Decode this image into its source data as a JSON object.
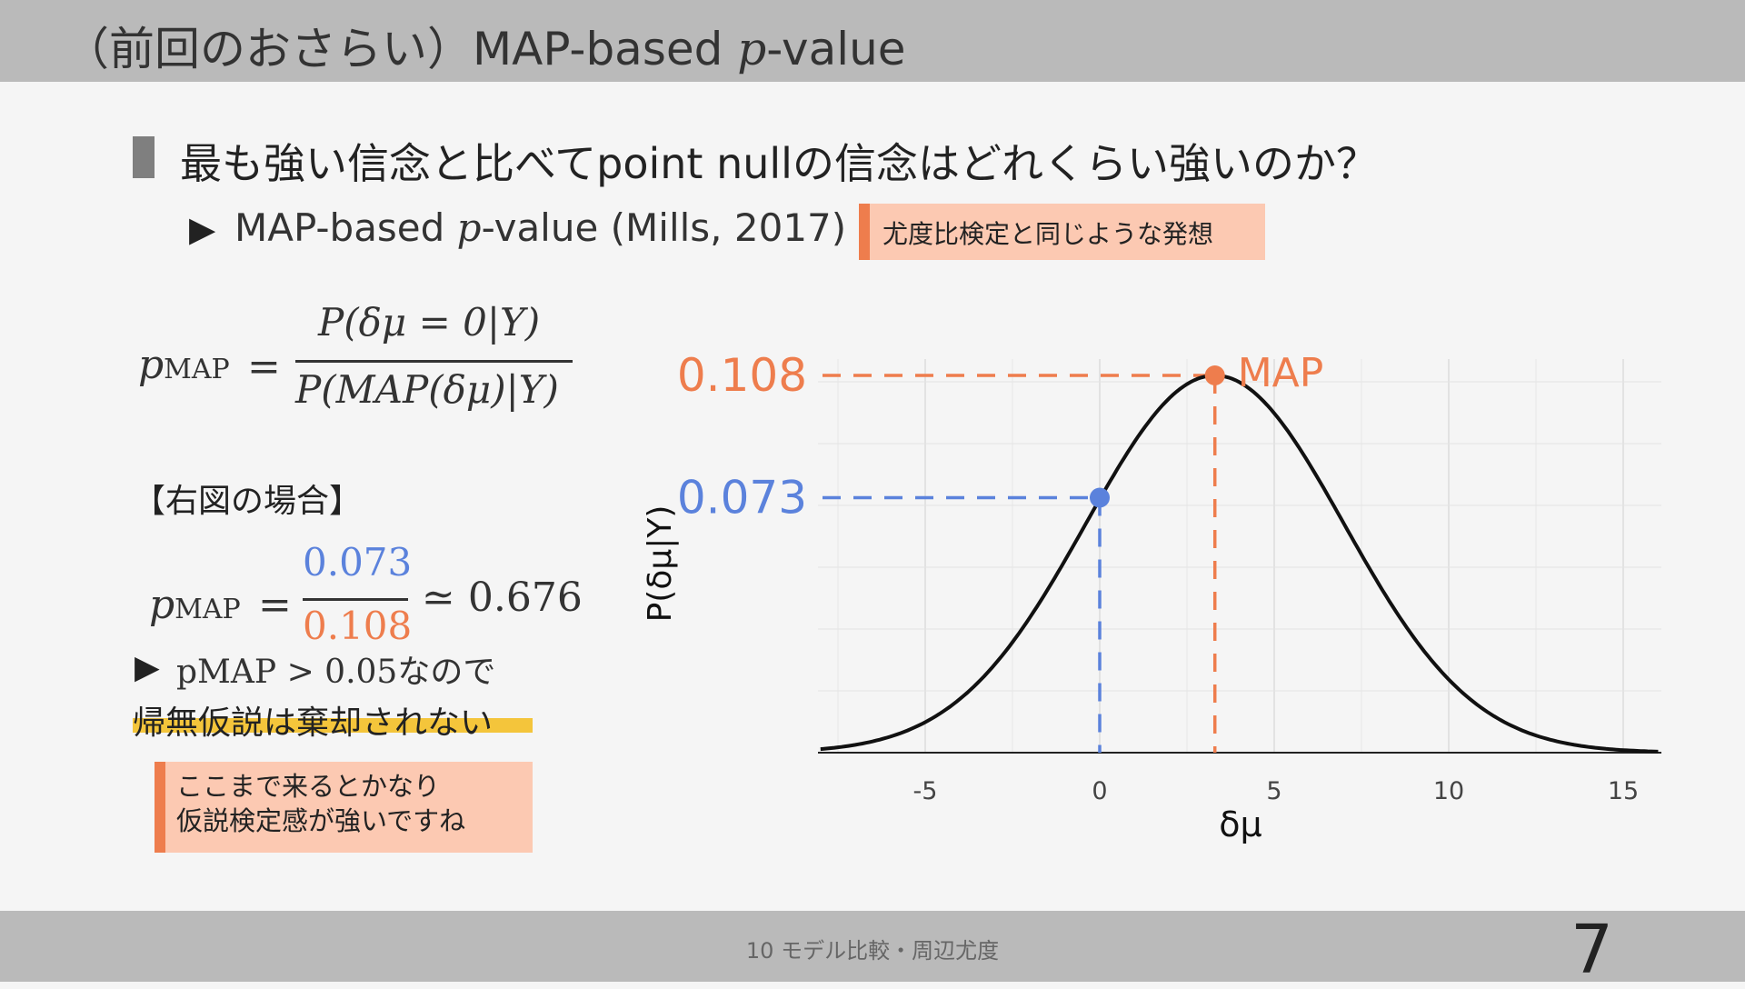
{
  "header": {
    "title_prefix": "（前回のおさらい）MAP-based ",
    "title_italic": "p",
    "title_suffix": "-value"
  },
  "heading": "最も強い信念と比べてpoint nullの信念はどれくらい強いのか？",
  "subpoint": {
    "arrow": "▶",
    "prefix": "MAP-based ",
    "italic": "p",
    "suffix": "-value (Mills, 2017)"
  },
  "callout_top": "尤度比検定と同じような発想",
  "formula_general": {
    "lhs_main": "p",
    "lhs_sub": "MAP",
    "eq": "=",
    "numerator": "P(δμ = 0|Y)",
    "denominator": "P(MAP(δμ)|Y)"
  },
  "case_label": "【右図の場合】",
  "formula_case": {
    "lhs_main": "p",
    "lhs_sub": "MAP",
    "eq": "=",
    "numerator": "0.073",
    "denominator": "0.108",
    "approx": "≃ 0.676"
  },
  "result": {
    "arrow": "▶",
    "text": "pMAP > 0.05なので"
  },
  "conclusion": "帰無仮説は棄却されない",
  "callout_bottom": {
    "line1": "ここまで来るとかなり",
    "line2": "仮説検定感が強いですね"
  },
  "colors": {
    "orange": "#ee7d4d",
    "blue": "#5b82dc",
    "highlight": "#f4c53b",
    "callout_bg": "#fcc9b2"
  },
  "chart_data": {
    "type": "line",
    "series": [
      {
        "name": "",
        "mean": 3.3,
        "sd": 3.7,
        "x_range": [
          -8,
          16
        ]
      }
    ],
    "xlabel": "δμ",
    "ylabel": "P(δμ|Y)",
    "xticks": [
      "-5",
      "0",
      "5",
      "10",
      "15"
    ],
    "xlim": [
      -8,
      16
    ],
    "ylim": [
      0,
      0.108
    ],
    "grid": true,
    "annotations": [
      {
        "label": "0.073",
        "x": 0,
        "y": 0.073,
        "color": "#5b82dc"
      },
      {
        "label": "0.108",
        "x": 3.3,
        "y": 0.108,
        "color": "#ee7d4d"
      },
      {
        "label": "MAP",
        "x": 3.3,
        "y": 0.108,
        "color": "#ee7d4d"
      }
    ]
  },
  "footer": {
    "text": "10 モデル比較・周辺尤度",
    "page": "7"
  }
}
